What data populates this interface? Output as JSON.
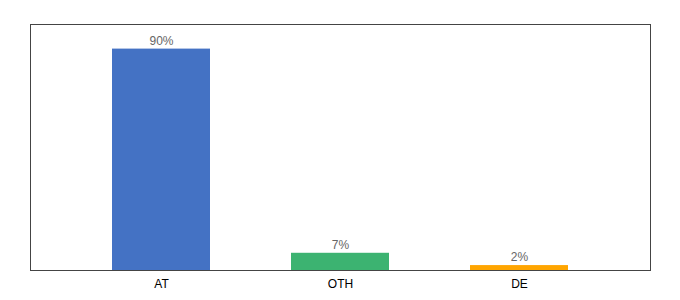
{
  "chart_data": {
    "type": "bar",
    "categories": [
      "AT",
      "OTH",
      "DE"
    ],
    "values": [
      90,
      7,
      2
    ],
    "value_labels": [
      "90%",
      "7%",
      "2%"
    ],
    "colors": [
      "#4472C4",
      "#3CB371",
      "#FFA500"
    ],
    "ylim": [
      0,
      100
    ],
    "yticks": [],
    "data_labels": true,
    "tick_labels": "x"
  }
}
